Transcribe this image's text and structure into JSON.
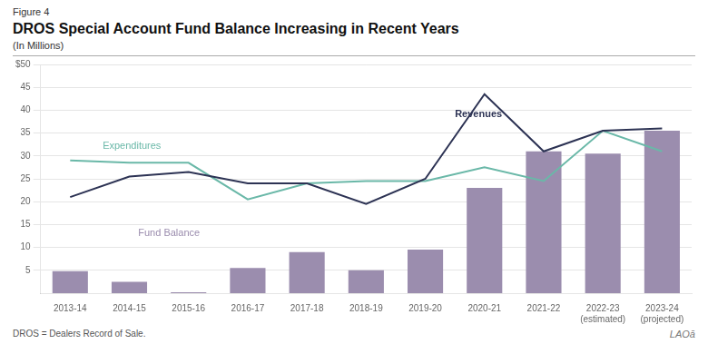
{
  "chart_data": {
    "type": "bar",
    "figure_label": "Figure 4",
    "title": "DROS Special Account Fund Balance Increasing in Recent Years",
    "subtitle": "(In Millions)",
    "footnote": "DROS = Dealers Record of Sale.",
    "logo_text": "LAOā",
    "categories": [
      "2013-14",
      "2014-15",
      "2015-16",
      "2016-17",
      "2017-18",
      "2018-19",
      "2019-20",
      "2020-21",
      "2021-22",
      "2022-23\n(estimated)",
      "2023-24\n(projected)"
    ],
    "series": [
      {
        "name": "Fund Balance",
        "type": "bar",
        "color": "#9b8dae",
        "values": [
          4.8,
          2.5,
          0.2,
          5.5,
          9,
          5,
          9.5,
          23,
          31,
          30.5,
          35.5
        ]
      },
      {
        "name": "Revenues",
        "type": "line",
        "color": "#2d3354",
        "values": [
          21,
          25.5,
          26.5,
          24,
          24,
          19.5,
          25,
          43.5,
          31,
          35.5,
          36
        ]
      },
      {
        "name": "Expenditures",
        "type": "line",
        "color": "#6ab8a8",
        "values": [
          29,
          28.5,
          28.5,
          20.5,
          24,
          24.5,
          24.5,
          27.5,
          24.5,
          35.5,
          31
        ]
      }
    ],
    "annotations": [
      {
        "text": "Revenues",
        "x": 6.5,
        "y": 38.5,
        "color": "#2d3354"
      },
      {
        "text": "Expenditures",
        "x": 0.55,
        "y": 31.5,
        "color": "#6ab8a8"
      },
      {
        "text": "Fund Balance",
        "x": 1.15,
        "y": 12.5,
        "color": "#9b8dae"
      }
    ],
    "ylim": [
      0,
      50
    ],
    "yticks": [
      5,
      10,
      15,
      20,
      25,
      30,
      35,
      40,
      45,
      {
        "value": 50,
        "label": "$50"
      }
    ],
    "grid": true
  }
}
